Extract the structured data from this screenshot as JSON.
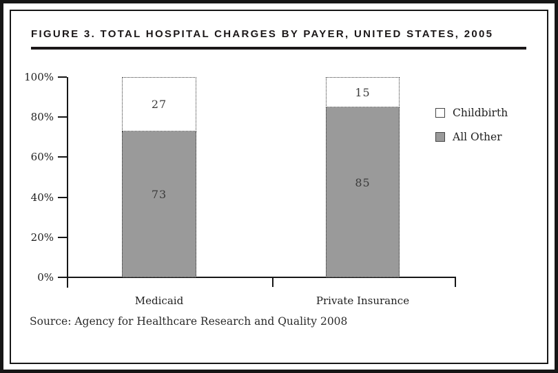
{
  "figure": {
    "title": "FIGURE 3. TOTAL HOSPITAL CHARGES BY PAYER, UNITED STATES, 2005",
    "source": "Source: Agency for Healthcare Research and Quality 2008"
  },
  "chart_data": {
    "type": "bar",
    "subtype": "stacked-100-percent",
    "title": "FIGURE 3. TOTAL HOSPITAL CHARGES BY PAYER, UNITED STATES, 2005",
    "categories": [
      "Medicaid",
      "Private Insurance"
    ],
    "series": [
      {
        "name": "Childbirth",
        "color": "#ffffff",
        "values": [
          27,
          15
        ]
      },
      {
        "name": "All Other",
        "color": "#9a9a9a",
        "values": [
          73,
          85
        ]
      }
    ],
    "yticks": [
      {
        "label": "0%",
        "value": 0
      },
      {
        "label": "20%",
        "value": 20
      },
      {
        "label": "40%",
        "value": 40
      },
      {
        "label": "60%",
        "value": 60
      },
      {
        "label": "80%",
        "value": 80
      },
      {
        "label": "100%",
        "value": 100
      }
    ],
    "ylim": [
      0,
      100
    ],
    "xlabel": "",
    "ylabel": "",
    "grid": false,
    "legend_position": "right",
    "source": "Source: Agency for Healthcare Research and Quality 2008",
    "colors": {
      "axis": "#161616",
      "bar_gray": "#9a9a9a",
      "bar_white": "#ffffff"
    }
  }
}
